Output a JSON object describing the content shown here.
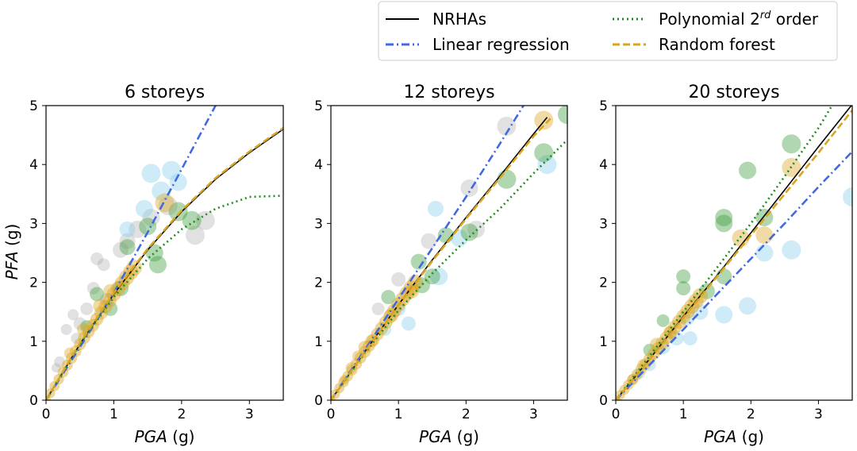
{
  "legend": {
    "items": [
      {
        "label": "NRHAs",
        "color": "#000000",
        "dash": "solid"
      },
      {
        "label": "Linear regression",
        "color": "#4169e1",
        "dash": "dashdot"
      },
      {
        "label": "Polynomial 2",
        "sup": "rd",
        "suffix": " order",
        "color": "#228b22",
        "dash": "dotted"
      },
      {
        "label": "Random forest",
        "color": "#daa520",
        "dash": "dashed"
      }
    ]
  },
  "ylabel": {
    "italic": "PFA",
    "unit": " (g)"
  },
  "xlabel": {
    "italic": "PGA",
    "unit": " (g)"
  },
  "colors": {
    "scatter_grey": "#a9a9a9",
    "scatter_blue": "#87ceeb",
    "scatter_green": "#3a9a3a",
    "scatter_gold": "#daa520"
  },
  "chart_data": [
    {
      "type": "scatter",
      "title": "6 storeys",
      "xlim": [
        0,
        3.5
      ],
      "ylim": [
        0,
        5
      ],
      "xticks": [
        "0",
        "1",
        "2",
        "3"
      ],
      "yticks": [
        "0",
        "1",
        "2",
        "3",
        "4",
        "5"
      ],
      "series": [
        {
          "name": "NRHAs",
          "kind": "line",
          "x": [
            0,
            0.5,
            1.0,
            1.5,
            2.0,
            2.5,
            3.0,
            3.5
          ],
          "y": [
            0,
            0.95,
            1.8,
            2.55,
            3.2,
            3.75,
            4.2,
            4.6
          ]
        },
        {
          "name": "Linear regression",
          "kind": "line",
          "x": [
            0,
            0.5,
            1.0,
            1.5,
            2.0,
            2.5
          ],
          "y": [
            0,
            0.9,
            1.82,
            2.85,
            3.92,
            5.0
          ]
        },
        {
          "name": "Polynomial 2rd order",
          "kind": "line",
          "x": [
            0,
            0.5,
            1.0,
            1.5,
            2.0,
            2.5,
            3.0,
            3.5
          ],
          "y": [
            0,
            0.95,
            1.75,
            2.4,
            2.9,
            3.25,
            3.45,
            3.47
          ]
        },
        {
          "name": "Random forest",
          "kind": "line",
          "x": [
            0,
            0.5,
            1.0,
            1.5,
            2.0,
            2.5,
            3.0,
            3.5
          ],
          "y": [
            0,
            0.97,
            1.82,
            2.57,
            3.22,
            3.77,
            4.22,
            4.62
          ]
        }
      ],
      "points": [
        {
          "x": 0.6,
          "y": 1.55,
          "c": "grey",
          "s": 8
        },
        {
          "x": 0.7,
          "y": 1.9,
          "c": "grey",
          "s": 8
        },
        {
          "x": 0.75,
          "y": 2.4,
          "c": "grey",
          "s": 8
        },
        {
          "x": 0.85,
          "y": 2.3,
          "c": "grey",
          "s": 8
        },
        {
          "x": 0.3,
          "y": 1.2,
          "c": "grey",
          "s": 7
        },
        {
          "x": 0.4,
          "y": 1.45,
          "c": "grey",
          "s": 7
        },
        {
          "x": 0.5,
          "y": 1.3,
          "c": "grey",
          "s": 8
        },
        {
          "x": 0.9,
          "y": 1.7,
          "c": "grey",
          "s": 9
        },
        {
          "x": 1.1,
          "y": 2.55,
          "c": "grey",
          "s": 10
        },
        {
          "x": 1.2,
          "y": 2.7,
          "c": "grey",
          "s": 10
        },
        {
          "x": 1.35,
          "y": 2.9,
          "c": "grey",
          "s": 11
        },
        {
          "x": 1.55,
          "y": 3.1,
          "c": "grey",
          "s": 11
        },
        {
          "x": 1.8,
          "y": 3.3,
          "c": "grey",
          "s": 12
        },
        {
          "x": 2.2,
          "y": 2.8,
          "c": "grey",
          "s": 12
        },
        {
          "x": 2.35,
          "y": 3.05,
          "c": "grey",
          "s": 12
        },
        {
          "x": 0.2,
          "y": 0.65,
          "c": "grey",
          "s": 7
        },
        {
          "x": 0.45,
          "y": 1.05,
          "c": "grey",
          "s": 7
        },
        {
          "x": 0.15,
          "y": 0.55,
          "c": "grey",
          "s": 6
        },
        {
          "x": 1.55,
          "y": 3.85,
          "c": "blue",
          "s": 12
        },
        {
          "x": 1.85,
          "y": 3.9,
          "c": "blue",
          "s": 12
        },
        {
          "x": 1.95,
          "y": 3.7,
          "c": "blue",
          "s": 11
        },
        {
          "x": 1.45,
          "y": 3.25,
          "c": "blue",
          "s": 11
        },
        {
          "x": 1.2,
          "y": 2.9,
          "c": "blue",
          "s": 10
        },
        {
          "x": 1.7,
          "y": 3.55,
          "c": "blue",
          "s": 12
        },
        {
          "x": 1.2,
          "y": 2.6,
          "c": "green",
          "s": 10
        },
        {
          "x": 1.5,
          "y": 2.95,
          "c": "green",
          "s": 11
        },
        {
          "x": 1.65,
          "y": 2.3,
          "c": "green",
          "s": 11
        },
        {
          "x": 1.6,
          "y": 2.5,
          "c": "green",
          "s": 11
        },
        {
          "x": 1.95,
          "y": 3.2,
          "c": "green",
          "s": 12
        },
        {
          "x": 2.15,
          "y": 3.05,
          "c": "green",
          "s": 12
        },
        {
          "x": 0.95,
          "y": 1.55,
          "c": "green",
          "s": 9
        },
        {
          "x": 0.75,
          "y": 1.8,
          "c": "green",
          "s": 9
        },
        {
          "x": 1.1,
          "y": 1.9,
          "c": "green",
          "s": 10
        },
        {
          "x": 0.6,
          "y": 1.25,
          "c": "green",
          "s": 8
        },
        {
          "x": 1.75,
          "y": 3.35,
          "c": "gold",
          "s": 12
        },
        {
          "x": 1.3,
          "y": 2.25,
          "c": "gold",
          "s": 10
        },
        {
          "x": 0.95,
          "y": 1.85,
          "c": "gold",
          "s": 9
        },
        {
          "x": 0.8,
          "y": 1.6,
          "c": "gold",
          "s": 9
        },
        {
          "x": 0.55,
          "y": 1.2,
          "c": "gold",
          "s": 8
        },
        {
          "x": 0.35,
          "y": 0.8,
          "c": "gold",
          "s": 7
        }
      ]
    },
    {
      "type": "scatter",
      "title": "12 storeys",
      "xlim": [
        0,
        3.5
      ],
      "ylim": [
        0,
        5
      ],
      "xticks": [
        "0",
        "1",
        "2",
        "3"
      ],
      "yticks": [
        "0",
        "1",
        "2",
        "3",
        "4",
        "5"
      ],
      "series": [
        {
          "name": "NRHAs",
          "kind": "line",
          "x": [
            0,
            0.5,
            1.0,
            1.5,
            2.0,
            2.5,
            3.0,
            3.2
          ],
          "y": [
            0,
            0.82,
            1.62,
            2.38,
            3.1,
            3.8,
            4.52,
            4.8
          ]
        },
        {
          "name": "Linear regression",
          "kind": "line",
          "x": [
            0,
            0.5,
            1.0,
            1.5,
            2.0,
            2.5,
            2.85
          ],
          "y": [
            0,
            0.85,
            1.72,
            2.58,
            3.45,
            4.35,
            5.0
          ]
        },
        {
          "name": "Polynomial 2rd order",
          "kind": "line",
          "x": [
            0,
            0.5,
            1.0,
            1.5,
            2.0,
            2.5,
            3.0,
            3.5
          ],
          "y": [
            0,
            0.8,
            1.52,
            2.15,
            2.72,
            3.25,
            3.85,
            4.42
          ]
        },
        {
          "name": "Random forest",
          "kind": "line",
          "x": [
            0,
            0.5,
            1.0,
            1.5,
            2.0,
            2.5,
            3.0,
            3.25
          ],
          "y": [
            0,
            0.82,
            1.61,
            2.36,
            3.08,
            3.77,
            4.48,
            4.78
          ]
        }
      ],
      "points": [
        {
          "x": 3.2,
          "y": 4.0,
          "c": "blue",
          "s": 12
        },
        {
          "x": 2.6,
          "y": 4.65,
          "c": "grey",
          "s": 12
        },
        {
          "x": 3.15,
          "y": 4.75,
          "c": "gold",
          "s": 12
        },
        {
          "x": 3.5,
          "y": 4.85,
          "c": "green",
          "s": 12
        },
        {
          "x": 3.15,
          "y": 4.2,
          "c": "green",
          "s": 12
        },
        {
          "x": 2.6,
          "y": 3.75,
          "c": "green",
          "s": 12
        },
        {
          "x": 2.05,
          "y": 3.6,
          "c": "grey",
          "s": 11
        },
        {
          "x": 2.05,
          "y": 2.85,
          "c": "green",
          "s": 11
        },
        {
          "x": 2.15,
          "y": 2.9,
          "c": "grey",
          "s": 11
        },
        {
          "x": 1.6,
          "y": 2.1,
          "c": "blue",
          "s": 11
        },
        {
          "x": 1.9,
          "y": 2.75,
          "c": "blue",
          "s": 11
        },
        {
          "x": 1.45,
          "y": 2.7,
          "c": "grey",
          "s": 10
        },
        {
          "x": 1.55,
          "y": 3.25,
          "c": "blue",
          "s": 10
        },
        {
          "x": 1.7,
          "y": 2.8,
          "c": "green",
          "s": 10
        },
        {
          "x": 1.3,
          "y": 2.35,
          "c": "green",
          "s": 10
        },
        {
          "x": 1.35,
          "y": 1.95,
          "c": "green",
          "s": 10
        },
        {
          "x": 1.5,
          "y": 2.1,
          "c": "green",
          "s": 10
        },
        {
          "x": 0.7,
          "y": 1.55,
          "c": "grey",
          "s": 8
        },
        {
          "x": 1.0,
          "y": 2.05,
          "c": "grey",
          "s": 9
        },
        {
          "x": 1.0,
          "y": 1.55,
          "c": "blue",
          "s": 9
        },
        {
          "x": 1.15,
          "y": 1.3,
          "c": "blue",
          "s": 9
        },
        {
          "x": 0.8,
          "y": 1.2,
          "c": "blue",
          "s": 8
        },
        {
          "x": 0.6,
          "y": 1.0,
          "c": "gold",
          "s": 8
        },
        {
          "x": 0.5,
          "y": 0.9,
          "c": "gold",
          "s": 8
        },
        {
          "x": 0.4,
          "y": 0.75,
          "c": "gold",
          "s": 7
        },
        {
          "x": 0.3,
          "y": 0.55,
          "c": "gold",
          "s": 7
        },
        {
          "x": 0.2,
          "y": 0.35,
          "c": "gold",
          "s": 6
        },
        {
          "x": 0.9,
          "y": 1.45,
          "c": "gold",
          "s": 9
        },
        {
          "x": 1.2,
          "y": 1.85,
          "c": "gold",
          "s": 9
        },
        {
          "x": 0.85,
          "y": 1.75,
          "c": "green",
          "s": 9
        }
      ]
    },
    {
      "type": "scatter",
      "title": "20 storeys",
      "xlim": [
        0,
        3.5
      ],
      "ylim": [
        0,
        5
      ],
      "xticks": [
        "0",
        "1",
        "2",
        "3"
      ],
      "yticks": [
        "0",
        "1",
        "2",
        "3",
        "4",
        "5"
      ],
      "series": [
        {
          "name": "NRHAs",
          "kind": "line",
          "x": [
            0,
            0.5,
            1.0,
            1.5,
            2.0,
            2.5,
            3.0,
            3.5
          ],
          "y": [
            0,
            0.7,
            1.42,
            2.12,
            2.84,
            3.57,
            4.3,
            5.02
          ]
        },
        {
          "name": "Linear regression",
          "kind": "line",
          "x": [
            0,
            0.5,
            1.0,
            1.5,
            2.0,
            2.5,
            3.0,
            3.5
          ],
          "y": [
            0,
            0.6,
            1.2,
            1.8,
            2.4,
            3.0,
            3.62,
            4.22
          ]
        },
        {
          "name": "Polynomial 2rd order",
          "kind": "line",
          "x": [
            0,
            0.5,
            1.0,
            1.5,
            2.0,
            2.5,
            3.0,
            3.2
          ],
          "y": [
            0,
            0.75,
            1.5,
            2.25,
            3.0,
            3.8,
            4.62,
            5.0
          ]
        },
        {
          "name": "Random forest",
          "kind": "line",
          "x": [
            0,
            0.5,
            1.0,
            1.5,
            2.0,
            2.5,
            3.0,
            3.5
          ],
          "y": [
            0,
            0.69,
            1.4,
            2.1,
            2.8,
            3.5,
            4.2,
            4.92
          ]
        }
      ],
      "points": [
        {
          "x": 2.6,
          "y": 4.35,
          "c": "green",
          "s": 12
        },
        {
          "x": 2.6,
          "y": 3.95,
          "c": "gold",
          "s": 12
        },
        {
          "x": 1.95,
          "y": 3.9,
          "c": "green",
          "s": 11
        },
        {
          "x": 1.6,
          "y": 3.1,
          "c": "green",
          "s": 11
        },
        {
          "x": 1.6,
          "y": 3.0,
          "c": "green",
          "s": 11
        },
        {
          "x": 2.2,
          "y": 3.1,
          "c": "green",
          "s": 11
        },
        {
          "x": 2.2,
          "y": 2.8,
          "c": "gold",
          "s": 11
        },
        {
          "x": 1.85,
          "y": 2.75,
          "c": "gold",
          "s": 11
        },
        {
          "x": 2.6,
          "y": 2.55,
          "c": "blue",
          "s": 12
        },
        {
          "x": 2.2,
          "y": 2.5,
          "c": "blue",
          "s": 11
        },
        {
          "x": 3.5,
          "y": 3.45,
          "c": "blue",
          "s": 12
        },
        {
          "x": 1.95,
          "y": 1.6,
          "c": "blue",
          "s": 11
        },
        {
          "x": 1.6,
          "y": 1.45,
          "c": "blue",
          "s": 11
        },
        {
          "x": 1.6,
          "y": 2.1,
          "c": "green",
          "s": 10
        },
        {
          "x": 1.35,
          "y": 1.85,
          "c": "green",
          "s": 10
        },
        {
          "x": 1.0,
          "y": 2.1,
          "c": "green",
          "s": 9
        },
        {
          "x": 1.0,
          "y": 1.9,
          "c": "green",
          "s": 9
        },
        {
          "x": 1.25,
          "y": 1.5,
          "c": "blue",
          "s": 10
        },
        {
          "x": 1.05,
          "y": 1.4,
          "c": "blue",
          "s": 10
        },
        {
          "x": 0.9,
          "y": 1.05,
          "c": "blue",
          "s": 9
        },
        {
          "x": 0.7,
          "y": 0.9,
          "c": "blue",
          "s": 9
        },
        {
          "x": 0.5,
          "y": 0.6,
          "c": "blue",
          "s": 8
        },
        {
          "x": 0.35,
          "y": 0.45,
          "c": "blue",
          "s": 7
        },
        {
          "x": 1.1,
          "y": 1.05,
          "c": "blue",
          "s": 9
        },
        {
          "x": 0.6,
          "y": 0.95,
          "c": "gold",
          "s": 8
        },
        {
          "x": 0.4,
          "y": 0.6,
          "c": "gold",
          "s": 7
        },
        {
          "x": 0.25,
          "y": 0.35,
          "c": "gold",
          "s": 7
        },
        {
          "x": 0.8,
          "y": 1.15,
          "c": "gold",
          "s": 8
        },
        {
          "x": 0.7,
          "y": 1.35,
          "c": "green",
          "s": 8
        },
        {
          "x": 0.5,
          "y": 0.85,
          "c": "green",
          "s": 8
        }
      ]
    }
  ]
}
